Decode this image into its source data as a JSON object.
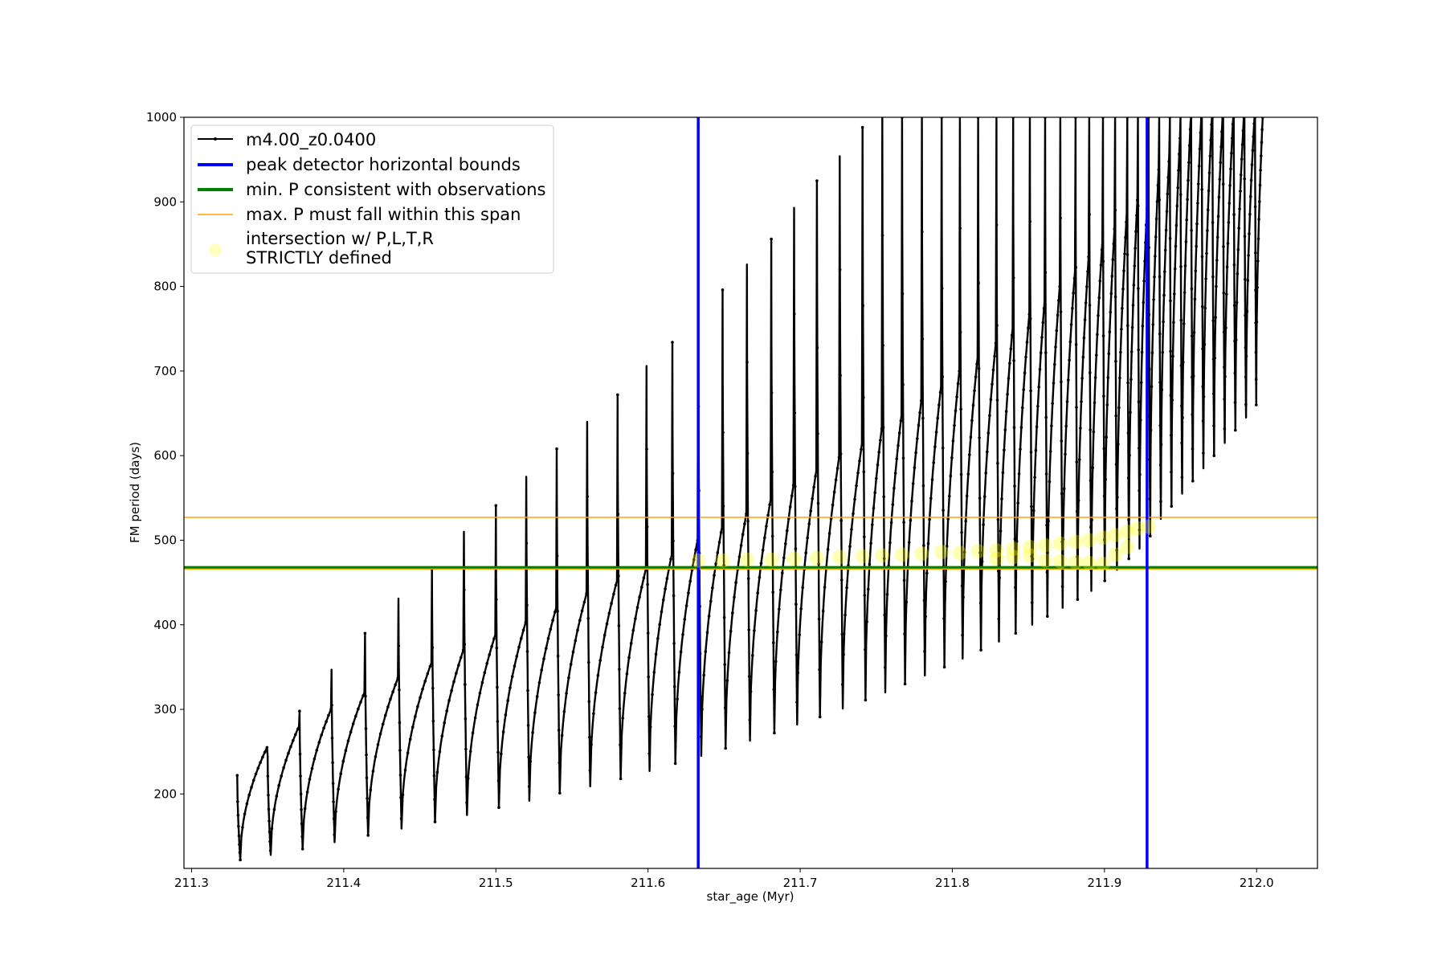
{
  "chart_data": {
    "type": "line",
    "title": "",
    "xlabel": "star_age (Myr)",
    "ylabel": "FM period (days)",
    "xlim": [
      211.295,
      212.04
    ],
    "ylim": [
      112,
      1000
    ],
    "xticks": [
      211.3,
      211.4,
      211.5,
      211.6,
      211.7,
      211.8,
      211.9,
      212.0
    ],
    "xtick_labels": [
      "211.3",
      "211.4",
      "211.5",
      "211.6",
      "211.7",
      "211.8",
      "211.9",
      "212.0"
    ],
    "yticks": [
      200,
      300,
      400,
      500,
      600,
      700,
      800,
      900,
      1000
    ],
    "ytick_labels": [
      "200",
      "300",
      "400",
      "500",
      "600",
      "700",
      "800",
      "900",
      "1000"
    ],
    "grid": false,
    "legend_position": "upper-left",
    "pulses": [
      {
        "t": 211.33,
        "start": 222,
        "trough": 122,
        "peak": 255
      },
      {
        "t": 211.35,
        "start": 245,
        "trough": 128,
        "peak": 280
      },
      {
        "t": 211.371,
        "start": 298,
        "trough": 135,
        "peak": 300
      },
      {
        "t": 211.392,
        "start": 347,
        "trough": 143,
        "peak": 320
      },
      {
        "t": 211.414,
        "start": 390,
        "trough": 151,
        "peak": 337
      },
      {
        "t": 211.436,
        "start": 431,
        "trough": 159,
        "peak": 355
      },
      {
        "t": 211.458,
        "start": 466,
        "trough": 167,
        "peak": 370
      },
      {
        "t": 211.479,
        "start": 510,
        "trough": 175,
        "peak": 388
      },
      {
        "t": 211.5,
        "start": 541,
        "trough": 184,
        "peak": 403
      },
      {
        "t": 211.52,
        "start": 575,
        "trough": 192,
        "peak": 420
      },
      {
        "t": 211.54,
        "start": 608,
        "trough": 201,
        "peak": 437
      },
      {
        "t": 211.56,
        "start": 640,
        "trough": 209,
        "peak": 452
      },
      {
        "t": 211.58,
        "start": 672,
        "trough": 218,
        "peak": 466
      },
      {
        "t": 211.599,
        "start": 706,
        "trough": 227,
        "peak": 483
      },
      {
        "t": 211.616,
        "start": 734,
        "trough": 236,
        "peak": 500
      },
      {
        "t": 211.633,
        "start": 765,
        "trough": 245,
        "peak": 515
      },
      {
        "t": 211.649,
        "start": 796,
        "trough": 254,
        "peak": 531
      },
      {
        "t": 211.665,
        "start": 826,
        "trough": 263,
        "peak": 548
      },
      {
        "t": 211.681,
        "start": 856,
        "trough": 272,
        "peak": 565
      },
      {
        "t": 211.696,
        "start": 893,
        "trough": 282,
        "peak": 582
      },
      {
        "t": 211.711,
        "start": 925,
        "trough": 291,
        "peak": 598
      },
      {
        "t": 211.726,
        "start": 954,
        "trough": 301,
        "peak": 614
      },
      {
        "t": 211.741,
        "start": 988,
        "trough": 311,
        "peak": 632
      },
      {
        "t": 211.754,
        "start": 1000,
        "trough": 320,
        "peak": 648
      },
      {
        "t": 211.767,
        "start": 1000,
        "trough": 330,
        "peak": 665
      },
      {
        "t": 211.78,
        "start": 1000,
        "trough": 340,
        "peak": 682
      },
      {
        "t": 211.793,
        "start": 1000,
        "trough": 350,
        "peak": 700
      },
      {
        "t": 211.805,
        "start": 1000,
        "trough": 360,
        "peak": 716
      },
      {
        "t": 211.817,
        "start": 1000,
        "trough": 370,
        "peak": 733
      },
      {
        "t": 211.829,
        "start": 1000,
        "trough": 380,
        "peak": 750
      },
      {
        "t": 211.84,
        "start": 1000,
        "trough": 390,
        "peak": 767
      },
      {
        "t": 211.851,
        "start": 1000,
        "trough": 400,
        "peak": 782
      },
      {
        "t": 211.861,
        "start": 1000,
        "trough": 410,
        "peak": 800
      },
      {
        "t": 211.871,
        "start": 1000,
        "trough": 420,
        "peak": 818
      },
      {
        "t": 211.881,
        "start": 1000,
        "trough": 430,
        "peak": 835
      },
      {
        "t": 211.89,
        "start": 1000,
        "trough": 440,
        "peak": 852
      },
      {
        "t": 211.899,
        "start": 1000,
        "trough": 452,
        "peak": 868
      },
      {
        "t": 211.907,
        "start": 1000,
        "trough": 465,
        "peak": 885
      },
      {
        "t": 211.915,
        "start": 1000,
        "trough": 478,
        "peak": 902
      },
      {
        "t": 211.922,
        "start": 1000,
        "trough": 490,
        "peak": 920
      },
      {
        "t": 211.929,
        "start": 1000,
        "trough": 505,
        "peak": 938
      },
      {
        "t": 211.936,
        "start": 1000,
        "trough": 525,
        "peak": 957
      },
      {
        "t": 211.943,
        "start": 1000,
        "trough": 540,
        "peak": 975
      },
      {
        "t": 211.95,
        "start": 1000,
        "trough": 555,
        "peak": 995
      },
      {
        "t": 211.957,
        "start": 1000,
        "trough": 570,
        "peak": 1000
      },
      {
        "t": 211.964,
        "start": 1000,
        "trough": 585,
        "peak": 1000
      },
      {
        "t": 211.971,
        "start": 1000,
        "trough": 600,
        "peak": 1000
      },
      {
        "t": 211.978,
        "start": 1000,
        "trough": 615,
        "peak": 1000
      },
      {
        "t": 211.985,
        "start": 1000,
        "trough": 630,
        "peak": 1000
      },
      {
        "t": 211.992,
        "start": 1000,
        "trough": 645,
        "peak": 1000
      },
      {
        "t": 211.999,
        "start": 1000,
        "trough": 660,
        "peak": 1000
      }
    ],
    "series": [
      {
        "name": "m4.00_z0.0400",
        "color": "#000000",
        "style": "line-with-small-markers"
      },
      {
        "name": "peak detector horizontal bounds",
        "color": "#0000ff",
        "style": "vertical-lines",
        "x": [
          211.633,
          211.928
        ]
      },
      {
        "name": "min. P consistent with observations",
        "color": "#008000",
        "style": "horizontal-line",
        "y": 468
      },
      {
        "name": "max. P must fall within this span",
        "color": "#ffa500",
        "style": "horizontal-lines",
        "y": [
          466,
          527
        ]
      },
      {
        "name": "intersection w/ P,L,T,R\nSTRICTLY defined",
        "color": "#ffff00",
        "style": "translucent-markers",
        "points": [
          [
            211.633,
            476
          ],
          [
            211.649,
            476
          ],
          [
            211.665,
            477
          ],
          [
            211.681,
            477
          ],
          [
            211.696,
            478
          ],
          [
            211.711,
            479
          ],
          [
            211.726,
            480
          ],
          [
            211.741,
            481
          ],
          [
            211.754,
            482
          ],
          [
            211.767,
            483
          ],
          [
            211.78,
            484
          ],
          [
            211.793,
            486
          ],
          [
            211.805,
            485
          ],
          [
            211.817,
            487
          ],
          [
            211.829,
            488
          ],
          [
            211.84,
            490
          ],
          [
            211.851,
            492
          ],
          [
            211.861,
            494
          ],
          [
            211.871,
            496
          ],
          [
            211.881,
            498
          ],
          [
            211.89,
            500
          ],
          [
            211.899,
            503
          ],
          [
            211.907,
            506
          ],
          [
            211.915,
            510
          ],
          [
            211.922,
            514
          ],
          [
            211.929,
            516
          ],
          [
            211.829,
            478
          ],
          [
            211.84,
            480
          ],
          [
            211.851,
            482
          ],
          [
            211.861,
            476
          ],
          [
            211.871,
            475
          ],
          [
            211.881,
            474
          ],
          [
            211.89,
            473
          ],
          [
            211.899,
            472
          ],
          [
            211.907,
            483
          ],
          [
            211.915,
            492
          ]
        ]
      }
    ]
  }
}
